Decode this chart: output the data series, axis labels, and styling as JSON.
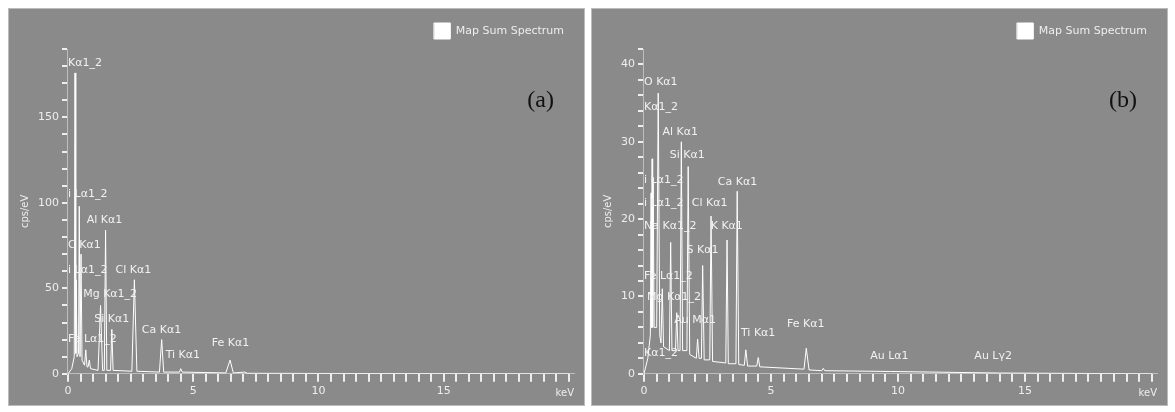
{
  "chart_data": [
    {
      "type": "line",
      "ylabel": "cps/eV",
      "xlabel": "keV",
      "legend": "top right",
      "marker": "none",
      "grid": false,
      "xlim": [
        0,
        20.2
      ],
      "ylim": [
        0,
        190
      ],
      "xticks": [
        0,
        {
          "value": 0.5,
          "label": null
        },
        {
          "value": 1,
          "label": null
        },
        {
          "value": 1.5,
          "label": null
        },
        {
          "value": 2,
          "label": null
        },
        {
          "value": 2.5,
          "label": null
        },
        {
          "value": 3,
          "label": null
        },
        {
          "value": 3.5,
          "label": null
        },
        {
          "value": 4,
          "label": null
        },
        {
          "value": 4.5,
          "label": null
        },
        5,
        {
          "value": 5.5,
          "label": null
        },
        {
          "value": 6,
          "label": null
        },
        {
          "value": 6.5,
          "label": null
        },
        {
          "value": 7,
          "label": null
        },
        {
          "value": 7.5,
          "label": null
        },
        {
          "value": 8,
          "label": null
        },
        {
          "value": 8.5,
          "label": null
        },
        {
          "value": 9,
          "label": null
        },
        {
          "value": 9.5,
          "label": null
        },
        10,
        {
          "value": 10.5,
          "label": null
        },
        {
          "value": 11,
          "label": null
        },
        {
          "value": 11.5,
          "label": null
        },
        {
          "value": 12,
          "label": null
        },
        {
          "value": 12.5,
          "label": null
        },
        {
          "value": 13,
          "label": null
        },
        {
          "value": 13.5,
          "label": null
        },
        {
          "value": 14,
          "label": null
        },
        {
          "value": 14.5,
          "label": null
        },
        15,
        {
          "value": 15.5,
          "label": null
        },
        {
          "value": 16,
          "label": null
        },
        {
          "value": 16.5,
          "label": null
        },
        {
          "value": 17,
          "label": null
        },
        {
          "value": 17.5,
          "label": null
        },
        {
          "value": 18,
          "label": null
        },
        {
          "value": 18.5,
          "label": null
        },
        {
          "value": 19,
          "label": null
        },
        {
          "value": 19.5,
          "label": null
        },
        {
          "value": 20,
          "label": null
        }
      ],
      "yticks": [
        0,
        {
          "value": 10,
          "label": null
        },
        {
          "value": 20,
          "label": null
        },
        {
          "value": 30,
          "label": null
        },
        {
          "value": 40,
          "label": null
        },
        50,
        {
          "value": 60,
          "label": null
        },
        {
          "value": 70,
          "label": null
        },
        {
          "value": 80,
          "label": null
        },
        {
          "value": 90,
          "label": null
        },
        100,
        {
          "value": 110,
          "label": null
        },
        {
          "value": 120,
          "label": null
        },
        {
          "value": 130,
          "label": null
        },
        {
          "value": 140,
          "label": null
        },
        150,
        {
          "value": 160,
          "label": null
        },
        {
          "value": 170,
          "label": null
        },
        {
          "value": 180,
          "label": null
        },
        {
          "value": 190,
          "label": null
        }
      ],
      "series": [
        {
          "name": "Map Sum Spectrum",
          "color": "#ffffff",
          "x": [
            0,
            0.15,
            0.25,
            0.28,
            0.31,
            0.33,
            0.36,
            0.42,
            0.45,
            0.48,
            0.52,
            0.56,
            0.66,
            0.71,
            0.76,
            0.8,
            0.85,
            0.9,
            1.2,
            1.3,
            1.38,
            1.45,
            1.5,
            1.55,
            1.7,
            1.75,
            1.8,
            2.55,
            2.65,
            2.75,
            3.65,
            3.74,
            3.82,
            4.45,
            4.5,
            4.56,
            6.3,
            6.47,
            6.6,
            7.06,
            7.15,
            10,
            20
          ],
          "values": [
            0,
            3,
            10,
            176,
            12,
            55,
            10,
            12,
            98,
            10,
            70,
            8,
            5,
            14,
            4,
            4,
            8,
            3,
            2,
            40,
            2,
            2,
            84,
            2,
            2,
            26,
            2,
            1.5,
            55,
            1.5,
            1,
            20,
            1,
            1,
            3,
            1,
            0.5,
            8,
            0.5,
            1,
            0.3,
            0.2,
            0
          ]
        }
      ],
      "annotations": [
        "(a)",
        "Kα1_2",
        "i Lα1_2",
        "Al Kα1",
        "C Kα1",
        "i Lα1_2",
        "Cl Kα1",
        "Mg Kα1_2",
        "Si Kα1",
        "Ca Kα1",
        "Fe Lα1_2",
        "Ti Kα1",
        "Fe Kα1"
      ]
    },
    {
      "type": "line",
      "ylabel": "cps/eV",
      "xlabel": "keV",
      "legend": "top right",
      "marker": "none",
      "grid": false,
      "xlim": [
        0,
        20.2
      ],
      "ylim": [
        0,
        42
      ],
      "xticks": [
        0,
        {
          "value": 0.5,
          "label": null
        },
        {
          "value": 1,
          "label": null
        },
        {
          "value": 1.5,
          "label": null
        },
        {
          "value": 2,
          "label": null
        },
        {
          "value": 2.5,
          "label": null
        },
        {
          "value": 3,
          "label": null
        },
        {
          "value": 3.5,
          "label": null
        },
        {
          "value": 4,
          "label": null
        },
        {
          "value": 4.5,
          "label": null
        },
        5,
        {
          "value": 5.5,
          "label": null
        },
        {
          "value": 6,
          "label": null
        },
        {
          "value": 6.5,
          "label": null
        },
        {
          "value": 7,
          "label": null
        },
        {
          "value": 7.5,
          "label": null
        },
        {
          "value": 8,
          "label": null
        },
        {
          "value": 8.5,
          "label": null
        },
        {
          "value": 9,
          "label": null
        },
        {
          "value": 9.5,
          "label": null
        },
        10,
        {
          "value": 10.5,
          "label": null
        },
        {
          "value": 11,
          "label": null
        },
        {
          "value": 11.5,
          "label": null
        },
        {
          "value": 12,
          "label": null
        },
        {
          "value": 12.5,
          "label": null
        },
        {
          "value": 13,
          "label": null
        },
        {
          "value": 13.5,
          "label": null
        },
        {
          "value": 14,
          "label": null
        },
        {
          "value": 14.5,
          "label": null
        },
        15,
        {
          "value": 15.5,
          "label": null
        },
        {
          "value": 16,
          "label": null
        },
        {
          "value": 16.5,
          "label": null
        },
        {
          "value": 17,
          "label": null
        },
        {
          "value": 17.5,
          "label": null
        },
        {
          "value": 18,
          "label": null
        },
        {
          "value": 18.5,
          "label": null
        },
        {
          "value": 19,
          "label": null
        },
        {
          "value": 19.5,
          "label": null
        },
        {
          "value": 20,
          "label": null
        }
      ],
      "yticks": [
        0,
        {
          "value": 2,
          "label": null
        },
        {
          "value": 4,
          "label": null
        },
        {
          "value": 6,
          "label": null
        },
        {
          "value": 8,
          "label": null
        },
        10,
        {
          "value": 12,
          "label": null
        },
        {
          "value": 14,
          "label": null
        },
        {
          "value": 16,
          "label": null
        },
        {
          "value": 18,
          "label": null
        },
        20,
        {
          "value": 22,
          "label": null
        },
        {
          "value": 24,
          "label": null
        },
        {
          "value": 26,
          "label": null
        },
        {
          "value": 28,
          "label": null
        },
        30,
        {
          "value": 32,
          "label": null
        },
        {
          "value": 34,
          "label": null
        },
        {
          "value": 36,
          "label": null
        },
        {
          "value": 38,
          "label": null
        },
        40,
        {
          "value": 42,
          "label": null
        }
      ],
      "series": [
        {
          "name": "Map Sum Spectrum",
          "color": "#ffffff",
          "x": [
            0,
            0.15,
            0.25,
            0.28,
            0.3,
            0.32,
            0.34,
            0.36,
            0.4,
            0.5,
            0.56,
            0.62,
            0.67,
            0.72,
            0.77,
            1.0,
            1.05,
            1.1,
            1.24,
            1.29,
            1.34,
            1.42,
            1.47,
            1.52,
            1.69,
            1.74,
            1.8,
            2.06,
            2.11,
            2.17,
            2.26,
            2.31,
            2.37,
            2.59,
            2.64,
            2.7,
            3.22,
            3.27,
            3.32,
            3.62,
            3.67,
            3.73,
            3.95,
            4.01,
            4.08,
            4.44,
            4.5,
            4.56,
            6.3,
            6.39,
            6.5,
            7.0,
            7.06,
            7.12,
            9.7,
            14,
            20
          ],
          "values": [
            0,
            2,
            5,
            23.4,
            6,
            27.8,
            6,
            25.4,
            6,
            6,
            36.3,
            5,
            4,
            11,
            3.5,
            3,
            17,
            3,
            3,
            7.9,
            3,
            3,
            30,
            3,
            3,
            26.8,
            2.5,
            2,
            4.5,
            2,
            2,
            14,
            1.8,
            1.8,
            20.4,
            1.6,
            1.4,
            17.3,
            1.3,
            1.3,
            23.6,
            1.2,
            1.1,
            3.1,
            1,
            1,
            2.1,
            0.9,
            0.6,
            3.3,
            0.5,
            0.4,
            0.7,
            0.4,
            0.3,
            0.1,
            0
          ]
        }
      ],
      "annotations": [
        "(b)",
        "O Kα1",
        "Kα1_2",
        "Al Kα1",
        "Si Kα1",
        "i Lα1_2",
        "Ca Kα1",
        "i Lα1_2",
        "Cl Kα1",
        "Na Kα1_2",
        "K Kα1",
        "S Kα1",
        "Fe Lα1_2",
        "Mg Kα1_2",
        "Au Mα1",
        "Ti Kα1",
        "Fe Kα1",
        "Kα1_2",
        "Au Lα1",
        "Au Lγ2"
      ]
    }
  ]
}
